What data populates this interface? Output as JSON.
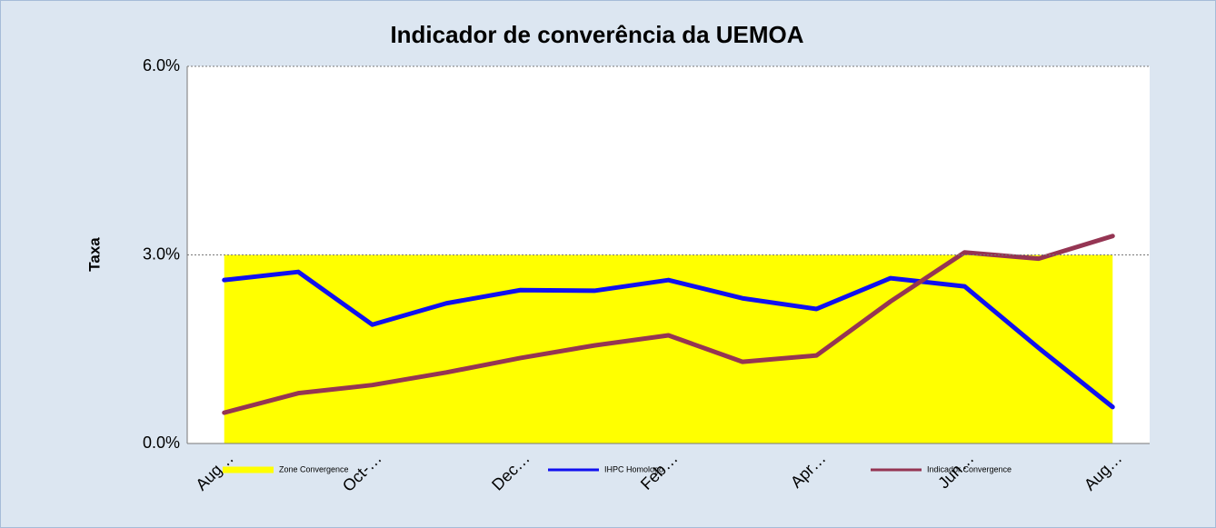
{
  "chart_data": {
    "type": "line",
    "title": "Indicador de converência da UEMOA",
    "y_label": "Taxa",
    "categories": [
      "Aug…",
      null,
      "Oct-…",
      null,
      "Dec…",
      null,
      "Feb…",
      null,
      "Apr…",
      null,
      "Jun…",
      null,
      "Aug…"
    ],
    "series": [
      {
        "name": "Zone Convergence",
        "color": "#ffff00",
        "kind": "area",
        "values": [
          3,
          3,
          3,
          3,
          3,
          3,
          3,
          3,
          3,
          3,
          3,
          3,
          3
        ]
      },
      {
        "name": "IHPC Homologo",
        "color": "#1010f0",
        "kind": "line",
        "values": [
          2.6,
          2.73,
          1.89,
          2.23,
          2.44,
          2.43,
          2.6,
          2.31,
          2.14,
          2.63,
          2.5,
          1.52,
          0.58
        ]
      },
      {
        "name": "Indicador Convergence",
        "color": "#953553",
        "kind": "line",
        "values": [
          0.49,
          0.8,
          0.93,
          1.13,
          1.36,
          1.56,
          1.72,
          1.3,
          1.4,
          2.26,
          3.04,
          2.94,
          3.3
        ]
      }
    ],
    "ylim": [
      0,
      6
    ],
    "yticks": [
      {
        "value": 0,
        "label": "0.0%"
      },
      {
        "value": 3,
        "label": "3.0%"
      },
      {
        "value": 6,
        "label": "6.0%"
      }
    ],
    "grid": true,
    "legend": "bottom"
  }
}
